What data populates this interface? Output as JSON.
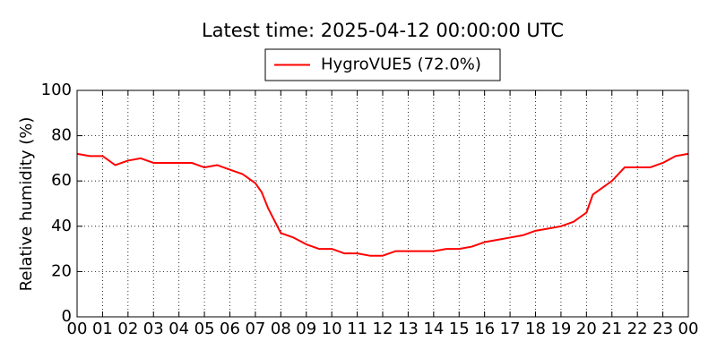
{
  "chart_data": {
    "type": "line",
    "title": "Latest time: 2025-04-12 00:00:00 UTC",
    "y_label": "Relative humidity (%)",
    "x": [
      0,
      0.5,
      1,
      1.5,
      2,
      2.5,
      3,
      3.5,
      4,
      4.5,
      5,
      5.5,
      6,
      6.5,
      7,
      7.25,
      7.5,
      8,
      8.5,
      9,
      9.5,
      10,
      10.5,
      11,
      11.5,
      12,
      12.5,
      13,
      13.5,
      14,
      14.5,
      15,
      15.5,
      16,
      16.5,
      17,
      17.5,
      18,
      18.5,
      19,
      19.5,
      20,
      20.25,
      20.5,
      21,
      21.5,
      22,
      22.5,
      23,
      23.5,
      24
    ],
    "series": [
      {
        "name": "HygroVUE5 (72.0%)",
        "color": "#ff0000",
        "values": [
          72,
          71,
          71,
          67,
          69,
          70,
          68,
          68,
          68,
          68,
          66,
          67,
          65,
          63,
          59,
          55,
          48,
          37,
          35,
          32,
          30,
          30,
          28,
          28,
          27,
          27,
          29,
          29,
          29,
          29,
          30,
          30,
          31,
          33,
          34,
          35,
          36,
          38,
          39,
          40,
          42,
          46,
          54,
          56,
          60,
          66,
          66,
          66,
          68,
          71,
          72
        ]
      }
    ],
    "xlim": [
      0,
      24
    ],
    "xticks": [
      {
        "value": 0,
        "label": "00"
      },
      {
        "value": 1,
        "label": "01"
      },
      {
        "value": 2,
        "label": "02"
      },
      {
        "value": 3,
        "label": "03"
      },
      {
        "value": 4,
        "label": "04"
      },
      {
        "value": 5,
        "label": "05"
      },
      {
        "value": 6,
        "label": "06"
      },
      {
        "value": 7,
        "label": "07"
      },
      {
        "value": 8,
        "label": "08"
      },
      {
        "value": 9,
        "label": "09"
      },
      {
        "value": 10,
        "label": "10"
      },
      {
        "value": 11,
        "label": "11"
      },
      {
        "value": 12,
        "label": "12"
      },
      {
        "value": 13,
        "label": "13"
      },
      {
        "value": 14,
        "label": "14"
      },
      {
        "value": 15,
        "label": "15"
      },
      {
        "value": 16,
        "label": "16"
      },
      {
        "value": 17,
        "label": "17"
      },
      {
        "value": 18,
        "label": "18"
      },
      {
        "value": 19,
        "label": "19"
      },
      {
        "value": 20,
        "label": "20"
      },
      {
        "value": 21,
        "label": "21"
      },
      {
        "value": 22,
        "label": "22"
      },
      {
        "value": 23,
        "label": "23"
      },
      {
        "value": 24,
        "label": "00"
      }
    ],
    "ylim": [
      0,
      100
    ],
    "yticks": [
      0,
      20,
      40,
      60,
      80,
      100
    ],
    "grid": true,
    "legend": "top"
  }
}
